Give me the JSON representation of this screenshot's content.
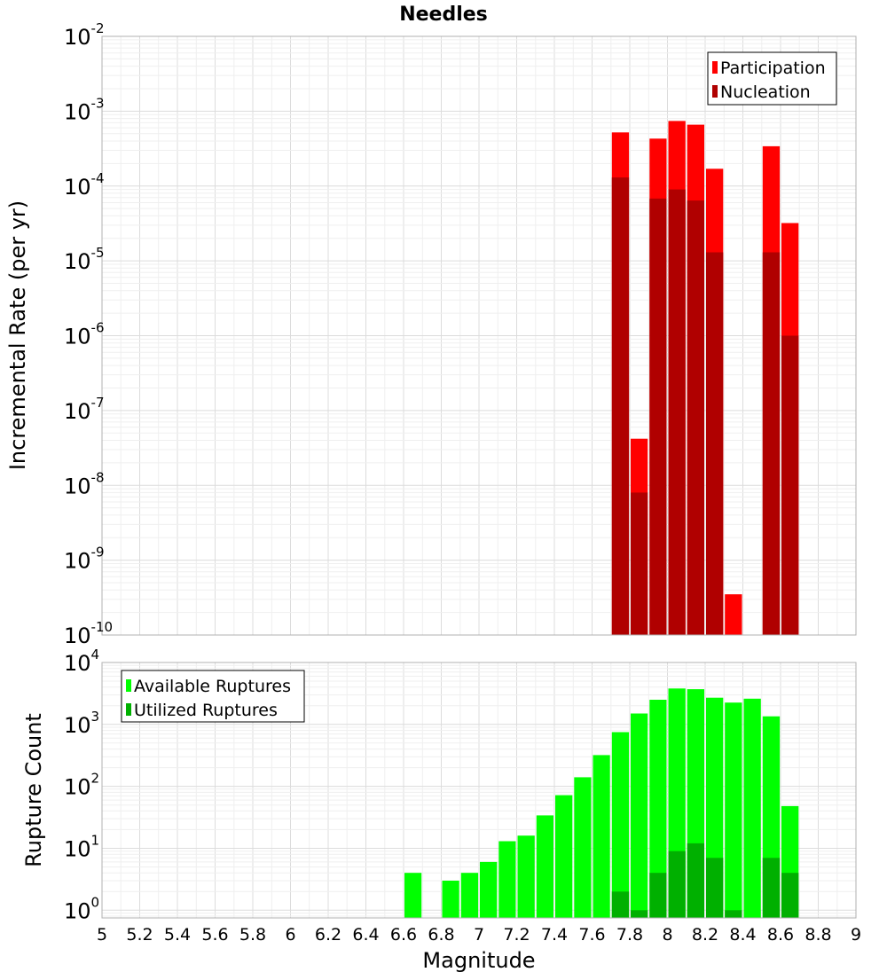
{
  "chart_data": [
    {
      "id": "rates",
      "type": "bar",
      "title": "Needles",
      "xlabel": "",
      "ylabel": "Incremental Rate (per yr)",
      "y_scale": "log",
      "ylim": [
        1e-10,
        0.01
      ],
      "xlim": [
        5,
        9
      ],
      "bar_width": 0.1,
      "grid": true,
      "legend_placement": "top-right",
      "series": [
        {
          "name": "Participation",
          "color": "#ff0000",
          "points": [
            {
              "x": 7.75,
              "y": 0.00052
            },
            {
              "x": 7.85,
              "y": 4.2e-08
            },
            {
              "x": 7.95,
              "y": 0.00043
            },
            {
              "x": 8.05,
              "y": 0.00074
            },
            {
              "x": 8.15,
              "y": 0.00066
            },
            {
              "x": 8.25,
              "y": 0.00017
            },
            {
              "x": 8.35,
              "y": 3.5e-10
            },
            {
              "x": 8.55,
              "y": 0.00034
            },
            {
              "x": 8.65,
              "y": 3.2e-05
            }
          ]
        },
        {
          "name": "Nucleation",
          "color": "#b00000",
          "points": [
            {
              "x": 7.75,
              "y": 0.00013
            },
            {
              "x": 7.85,
              "y": 8e-09
            },
            {
              "x": 7.95,
              "y": 6.8e-05
            },
            {
              "x": 8.05,
              "y": 9e-05
            },
            {
              "x": 8.15,
              "y": 6.4e-05
            },
            {
              "x": 8.25,
              "y": 1.3e-05
            },
            {
              "x": 8.55,
              "y": 1.3e-05
            },
            {
              "x": 8.65,
              "y": 1e-06
            }
          ]
        }
      ],
      "y_ticks": [
        {
          "base": "10",
          "exp": "-2"
        },
        {
          "base": "10",
          "exp": "-3"
        },
        {
          "base": "10",
          "exp": "-4"
        },
        {
          "base": "10",
          "exp": "-5"
        },
        {
          "base": "10",
          "exp": "-6"
        },
        {
          "base": "10",
          "exp": "-7"
        },
        {
          "base": "10",
          "exp": "-8"
        },
        {
          "base": "10",
          "exp": "-9"
        },
        {
          "base": "10",
          "exp": "-10"
        }
      ]
    },
    {
      "id": "counts",
      "type": "bar",
      "title": "",
      "xlabel": "Magnitude",
      "ylabel": "Rupture Count",
      "y_scale": "log",
      "ylim": [
        0.75,
        10000
      ],
      "xlim": [
        5,
        9
      ],
      "bar_width": 0.1,
      "grid": true,
      "legend_placement": "top-left",
      "series": [
        {
          "name": "Available Ruptures",
          "color": "#00ff00",
          "points": [
            {
              "x": 6.65,
              "y": 4
            },
            {
              "x": 6.85,
              "y": 3
            },
            {
              "x": 6.95,
              "y": 4
            },
            {
              "x": 7.05,
              "y": 6
            },
            {
              "x": 7.15,
              "y": 13
            },
            {
              "x": 7.25,
              "y": 16
            },
            {
              "x": 7.35,
              "y": 34
            },
            {
              "x": 7.45,
              "y": 72
            },
            {
              "x": 7.55,
              "y": 140
            },
            {
              "x": 7.65,
              "y": 320
            },
            {
              "x": 7.75,
              "y": 750
            },
            {
              "x": 7.85,
              "y": 1500
            },
            {
              "x": 7.95,
              "y": 2500
            },
            {
              "x": 8.05,
              "y": 3800
            },
            {
              "x": 8.15,
              "y": 3700
            },
            {
              "x": 8.25,
              "y": 2700
            },
            {
              "x": 8.35,
              "y": 2250
            },
            {
              "x": 8.45,
              "y": 2600
            },
            {
              "x": 8.55,
              "y": 1350
            },
            {
              "x": 8.65,
              "y": 48
            }
          ]
        },
        {
          "name": "Utilized Ruptures",
          "color": "#00b000",
          "points": [
            {
              "x": 7.75,
              "y": 2
            },
            {
              "x": 7.85,
              "y": 1
            },
            {
              "x": 7.95,
              "y": 4
            },
            {
              "x": 8.05,
              "y": 9
            },
            {
              "x": 8.15,
              "y": 12
            },
            {
              "x": 8.25,
              "y": 7
            },
            {
              "x": 8.35,
              "y": 1
            },
            {
              "x": 8.55,
              "y": 7
            },
            {
              "x": 8.65,
              "y": 4
            }
          ]
        }
      ],
      "y_ticks": [
        {
          "base": "10",
          "exp": "4"
        },
        {
          "base": "10",
          "exp": "3"
        },
        {
          "base": "10",
          "exp": "2"
        },
        {
          "base": "10",
          "exp": "1"
        },
        {
          "base": "10",
          "exp": "0"
        }
      ],
      "x_tick_labels": [
        "5",
        "5.2",
        "5.4",
        "5.6",
        "5.8",
        "6",
        "6.2",
        "6.4",
        "6.6",
        "6.8",
        "7",
        "7.2",
        "7.4",
        "7.6",
        "7.8",
        "8",
        "8.2",
        "8.4",
        "8.6",
        "8.8",
        "9"
      ]
    }
  ]
}
